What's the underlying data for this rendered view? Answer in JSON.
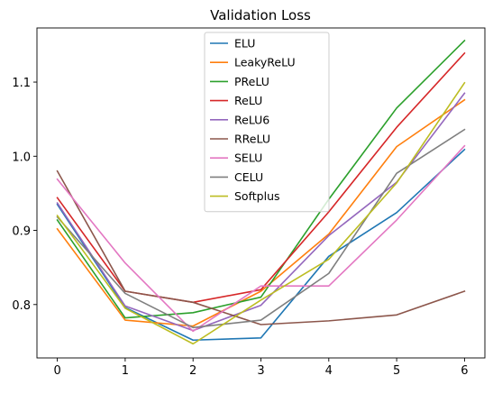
{
  "chart_data": {
    "type": "line",
    "title": "Validation Loss",
    "xlabel": "",
    "ylabel": "",
    "x": [
      0,
      1,
      2,
      3,
      4,
      5,
      6
    ],
    "xlim": [
      -0.3,
      6.3
    ],
    "ylim": [
      0.728,
      1.173
    ],
    "xticks": [
      0,
      1,
      2,
      3,
      4,
      5,
      6
    ],
    "xtick_labels": [
      "0",
      "1",
      "2",
      "3",
      "4",
      "5",
      "6"
    ],
    "yticks": [
      0.8,
      0.9,
      1.0,
      1.1
    ],
    "ytick_labels": [
      "0.8",
      "0.9",
      "1.0",
      "1.1"
    ],
    "grid": false,
    "legend_position": "top-center",
    "series": [
      {
        "name": "ELU",
        "color": "#1f77b4",
        "values": [
          0.935,
          0.796,
          0.752,
          0.755,
          0.865,
          0.924,
          1.009
        ]
      },
      {
        "name": "LeakyReLU",
        "color": "#ff7f0e",
        "values": [
          0.902,
          0.779,
          0.771,
          0.818,
          0.895,
          1.013,
          1.076
        ]
      },
      {
        "name": "PReLU",
        "color": "#2ca02c",
        "values": [
          0.914,
          0.782,
          0.789,
          0.81,
          0.942,
          1.065,
          1.156
        ]
      },
      {
        "name": "ReLU",
        "color": "#d62728",
        "values": [
          0.944,
          0.818,
          0.803,
          0.82,
          0.925,
          1.039,
          1.139
        ]
      },
      {
        "name": "ReLU6",
        "color": "#9467bd",
        "values": [
          0.937,
          0.798,
          0.765,
          0.799,
          0.893,
          0.965,
          1.085
        ]
      },
      {
        "name": "RReLU",
        "color": "#8c564b",
        "values": [
          0.98,
          0.818,
          0.803,
          0.773,
          0.778,
          0.786,
          0.818
        ]
      },
      {
        "name": "SELU",
        "color": "#e377c2",
        "values": [
          0.969,
          0.856,
          0.764,
          0.825,
          0.825,
          0.914,
          1.014
        ]
      },
      {
        "name": "CELU",
        "color": "#7f7f7f",
        "values": [
          0.918,
          0.815,
          0.769,
          0.779,
          0.842,
          0.977,
          1.036
        ]
      },
      {
        "name": "Softplus",
        "color": "#bcbd22",
        "values": [
          0.92,
          0.795,
          0.747,
          0.806,
          0.861,
          0.964,
          1.099
        ]
      }
    ]
  }
}
